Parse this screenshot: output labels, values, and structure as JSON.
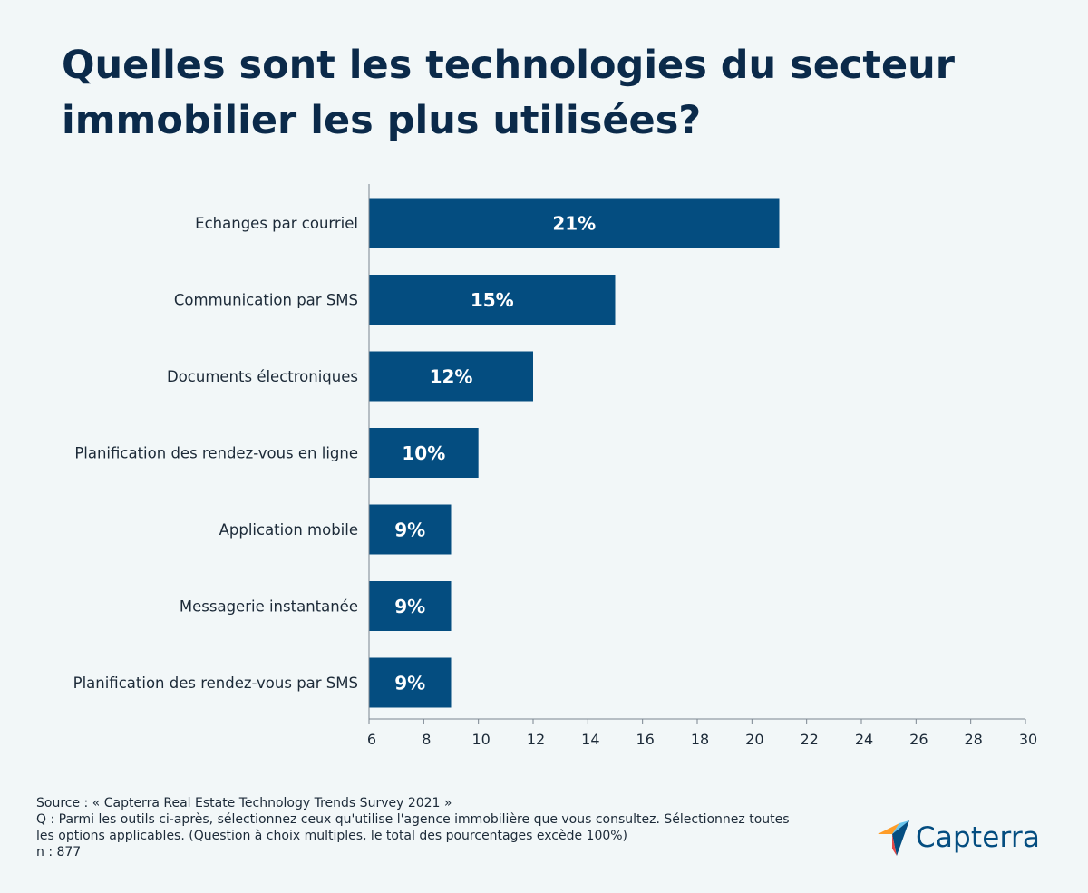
{
  "title": "Quelles sont les technologies du secteur immobilier les plus utilisées?",
  "chart_data": {
    "type": "bar",
    "orientation": "horizontal",
    "categories": [
      "Echanges par courriel",
      "Communication par SMS",
      "Documents électroniques",
      "Planification des rendez-vous en ligne",
      "Application mobile",
      "Messagerie instantanée",
      "Planification des rendez-vous par SMS"
    ],
    "values": [
      21,
      15,
      12,
      10,
      9,
      9,
      9
    ],
    "data_labels": [
      "21%",
      "15%",
      "12%",
      "10%",
      "9%",
      "9%",
      "9%"
    ],
    "xlim": [
      6,
      30
    ],
    "xticks": [
      6,
      8,
      10,
      12,
      14,
      16,
      18,
      20,
      22,
      24,
      26,
      28,
      30
    ],
    "xlabel": "",
    "ylabel": "",
    "grid": false,
    "bar_color": "#044d80",
    "label_color": "#ffffff"
  },
  "footer": {
    "source": "Source : « Capterra Real Estate Technology Trends Survey 2021 »",
    "question_line1": "Q : Parmi les outils ci-après, sélectionnez ceux qu'utilise l'agence immobilière que vous consultez. Sélectionnez toutes",
    "question_line2": "les options applicables. (Question à choix multiples, le total des pourcentages excède 100%)",
    "n": "n : 877"
  },
  "logo": {
    "text": "Capterra",
    "colors": [
      "#ff9d28",
      "#68c5ed",
      "#044d80",
      "#e54747"
    ]
  }
}
